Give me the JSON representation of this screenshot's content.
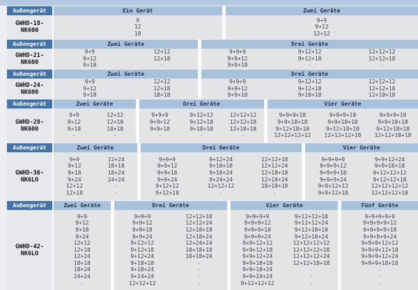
{
  "colors": {
    "header_cell_blue": "#4274a8",
    "band_blue": "#a9c2dc",
    "top_strip_blue": "#b3c8e1",
    "data_bg": "#e4e4e7",
    "model_bg": "#e7e8eb",
    "band_text": "#1e2f55",
    "value_text": "#3c4048"
  },
  "table": {
    "outdoor_unit_label": "Außengerät",
    "sections": [
      {
        "model": "GWHD-18-NK600",
        "model_lines": [
          "GWHD-18-",
          "NK600"
        ],
        "groups": [
          {
            "label": "Ein Gerät",
            "flex": 243,
            "cols": [
              [
                "9",
                "12",
                "18"
              ]
            ]
          },
          {
            "label": "Zwei Geräte",
            "flex": 278,
            "cols": [
              [
                "9+9",
                "9+12",
                "12+12"
              ]
            ]
          }
        ]
      },
      {
        "model": "GWHD-21-NK600",
        "model_lines": [
          "GWHD-21-",
          "NK600"
        ],
        "groups": [
          {
            "label": "Zwei Geräte",
            "flex": 208,
            "cols": [
              [
                "9+9",
                "9+12",
                "9+18"
              ],
              [
                "12+12",
                "12+18",
                "-"
              ]
            ]
          },
          {
            "label": "Drei Geräte",
            "flex": 312,
            "cols": [
              [
                "9+9+9",
                "9+9+12",
                "9+9+18"
              ],
              [
                "9+12+12",
                "9+12+18",
                "-"
              ],
              [
                "12+12+12",
                "12+12+18",
                "-"
              ]
            ]
          }
        ]
      },
      {
        "model": "GWHD-24-NK600",
        "model_lines": [
          "GWHD-24-",
          "NK600"
        ],
        "groups": [
          {
            "label": "Zwei Geräte",
            "flex": 208,
            "cols": [
              [
                "9+9",
                "9+12",
                "9+18"
              ],
              [
                "12+12",
                "12+18",
                "18+18"
              ]
            ]
          },
          {
            "label": "Drei Geräte",
            "flex": 312,
            "cols": [
              [
                "9+9+9",
                "9+9+12",
                "9+9+18"
              ],
              [
                "9+12+12",
                "9+12+18",
                "9+18+18"
              ],
              [
                "12+12+12",
                "12+12+18",
                "12+18+18"
              ]
            ]
          }
        ]
      },
      {
        "model": "GWHD-28-NK600",
        "model_lines": [
          "GWHD-28-",
          "NK600"
        ],
        "groups": [
          {
            "label": "Zwei Geräte",
            "flex": 118,
            "cols": [
              [
                "9+9",
                "9+12",
                "9+18",
                "-"
              ],
              [
                "12+12",
                "12+18",
                "18+18",
                "-"
              ]
            ]
          },
          {
            "label": "Drei Geräte",
            "flex": 180,
            "cols": [
              [
                "9+9+9",
                "9+9+12",
                "9+9+18",
                "-"
              ],
              [
                "9+12+12",
                "9+12+18",
                "9+18+18",
                "-"
              ],
              [
                "12+12+12",
                "12+12+18",
                "12+18+18",
                "-"
              ]
            ]
          },
          {
            "label": "Vier Geräte",
            "flex": 217,
            "cols": [
              [
                "9+9+9+18",
                "9+9+18+18",
                "9+12+18+18",
                "12+12+12+12"
              ],
              [
                "9+9+9+18",
                "9+9+18+18",
                "9+12+18+18",
                "12+12+12+18"
              ],
              [
                "9+9+9+18",
                "9+9+18+18",
                "9+12+18+18",
                "12+12+18+18"
              ]
            ]
          }
        ]
      },
      {
        "model": "GWHD-36-NK6LO",
        "model_lines": [
          "GWHD-36-",
          "NK6LO"
        ],
        "groups": [
          {
            "label": "Zwei Geräte",
            "flex": 120,
            "cols": [
              [
                "9+9",
                "9+12",
                "9+18",
                "9+24",
                "12+12",
                "12+18"
              ],
              [
                "12+24",
                "18+18",
                "18+24",
                "24+24",
                "-",
                "-"
              ]
            ]
          },
          {
            "label": "Drei Geräte",
            "flex": 232,
            "cols": [
              [
                "9+9+9",
                "9+9+12",
                "9+9+18",
                "9+9+24",
                "9+12+12",
                "9+12+18"
              ],
              [
                "9+12+24",
                "9+18+18",
                "9+18+24",
                "9+24+24",
                "12+12+12",
                "-"
              ],
              [
                "12+12+18",
                "12+12+24",
                "12+18+18",
                "12+18+24",
                "18+18+18",
                "-"
              ]
            ]
          },
          {
            "label": "Vier Geräte",
            "flex": 163,
            "cols": [
              [
                "9+9+9+9",
                "9+9+9+12",
                "9+9+9+18",
                "9+9+9+24",
                "9+9+12+12",
                "9+9+12+18"
              ],
              [
                "9+9+12+24",
                "9+9+18+18",
                "9+12+12+12",
                "9+12+12+18",
                "12+12+12+12",
                "12+12+12+18"
              ]
            ]
          }
        ]
      },
      {
        "model": "GWHD-42-NK6LO",
        "model_lines": [
          "GWHD-42-",
          "NK6LO"
        ],
        "groups": [
          {
            "label": "Zwei Geräte",
            "flex": 82,
            "cols": [
              [
                "9+9",
                "9+12",
                "9+18",
                "9+24",
                "12+12",
                "12+18",
                "12+24",
                "18+18",
                "18+24",
                "24+24",
                "-"
              ]
            ]
          },
          {
            "label": "Drei Geräte",
            "flex": 163,
            "cols": [
              [
                "9+9+9",
                "9+9+12",
                "9+9+18",
                "9+9+24",
                "9+12+12",
                "9+12+18",
                "9+12+24",
                "9+18+18",
                "9+18+24",
                "9+24+24",
                "12+12+12"
              ],
              [
                "12+12+18",
                "12+12+24",
                "12+18+18",
                "12+18+24",
                "12+24+24",
                "18+18+18",
                "18+18+24",
                "-",
                "-",
                "-",
                "-"
              ]
            ]
          },
          {
            "label": "Vier Geräte",
            "flex": 155,
            "cols": [
              [
                "9+9+9+9",
                "9+9+9+12",
                "9+9+9+18",
                "9+9+9+24",
                "9+9+12+12",
                "9+9+12+18",
                "9+9+12+24",
                "9+9+18+18",
                "9+9+18+24",
                "9+9+24+24",
                "9+12+12+12"
              ],
              [
                "9+12+12+18",
                "9+12+12+24",
                "9+12+18+18",
                "9+12+18+24",
                "12+12+12+12",
                "12+12+12+18",
                "12+12+12+24",
                "12+12+18+18",
                "-",
                "-",
                "-"
              ]
            ]
          },
          {
            "label": "Fünf Geräte",
            "flex": 110,
            "cols": [
              [
                "9+9+9+9+9",
                "9+9+9+9+12",
                "9+9+9+9+18",
                "9+9+9+9+24",
                "9+9+9+12+12",
                "9+9+9+12+18",
                "9+9+9+12+24",
                "9+9+9+18+18",
                "-",
                "-",
                "-"
              ]
            ]
          }
        ]
      }
    ]
  }
}
